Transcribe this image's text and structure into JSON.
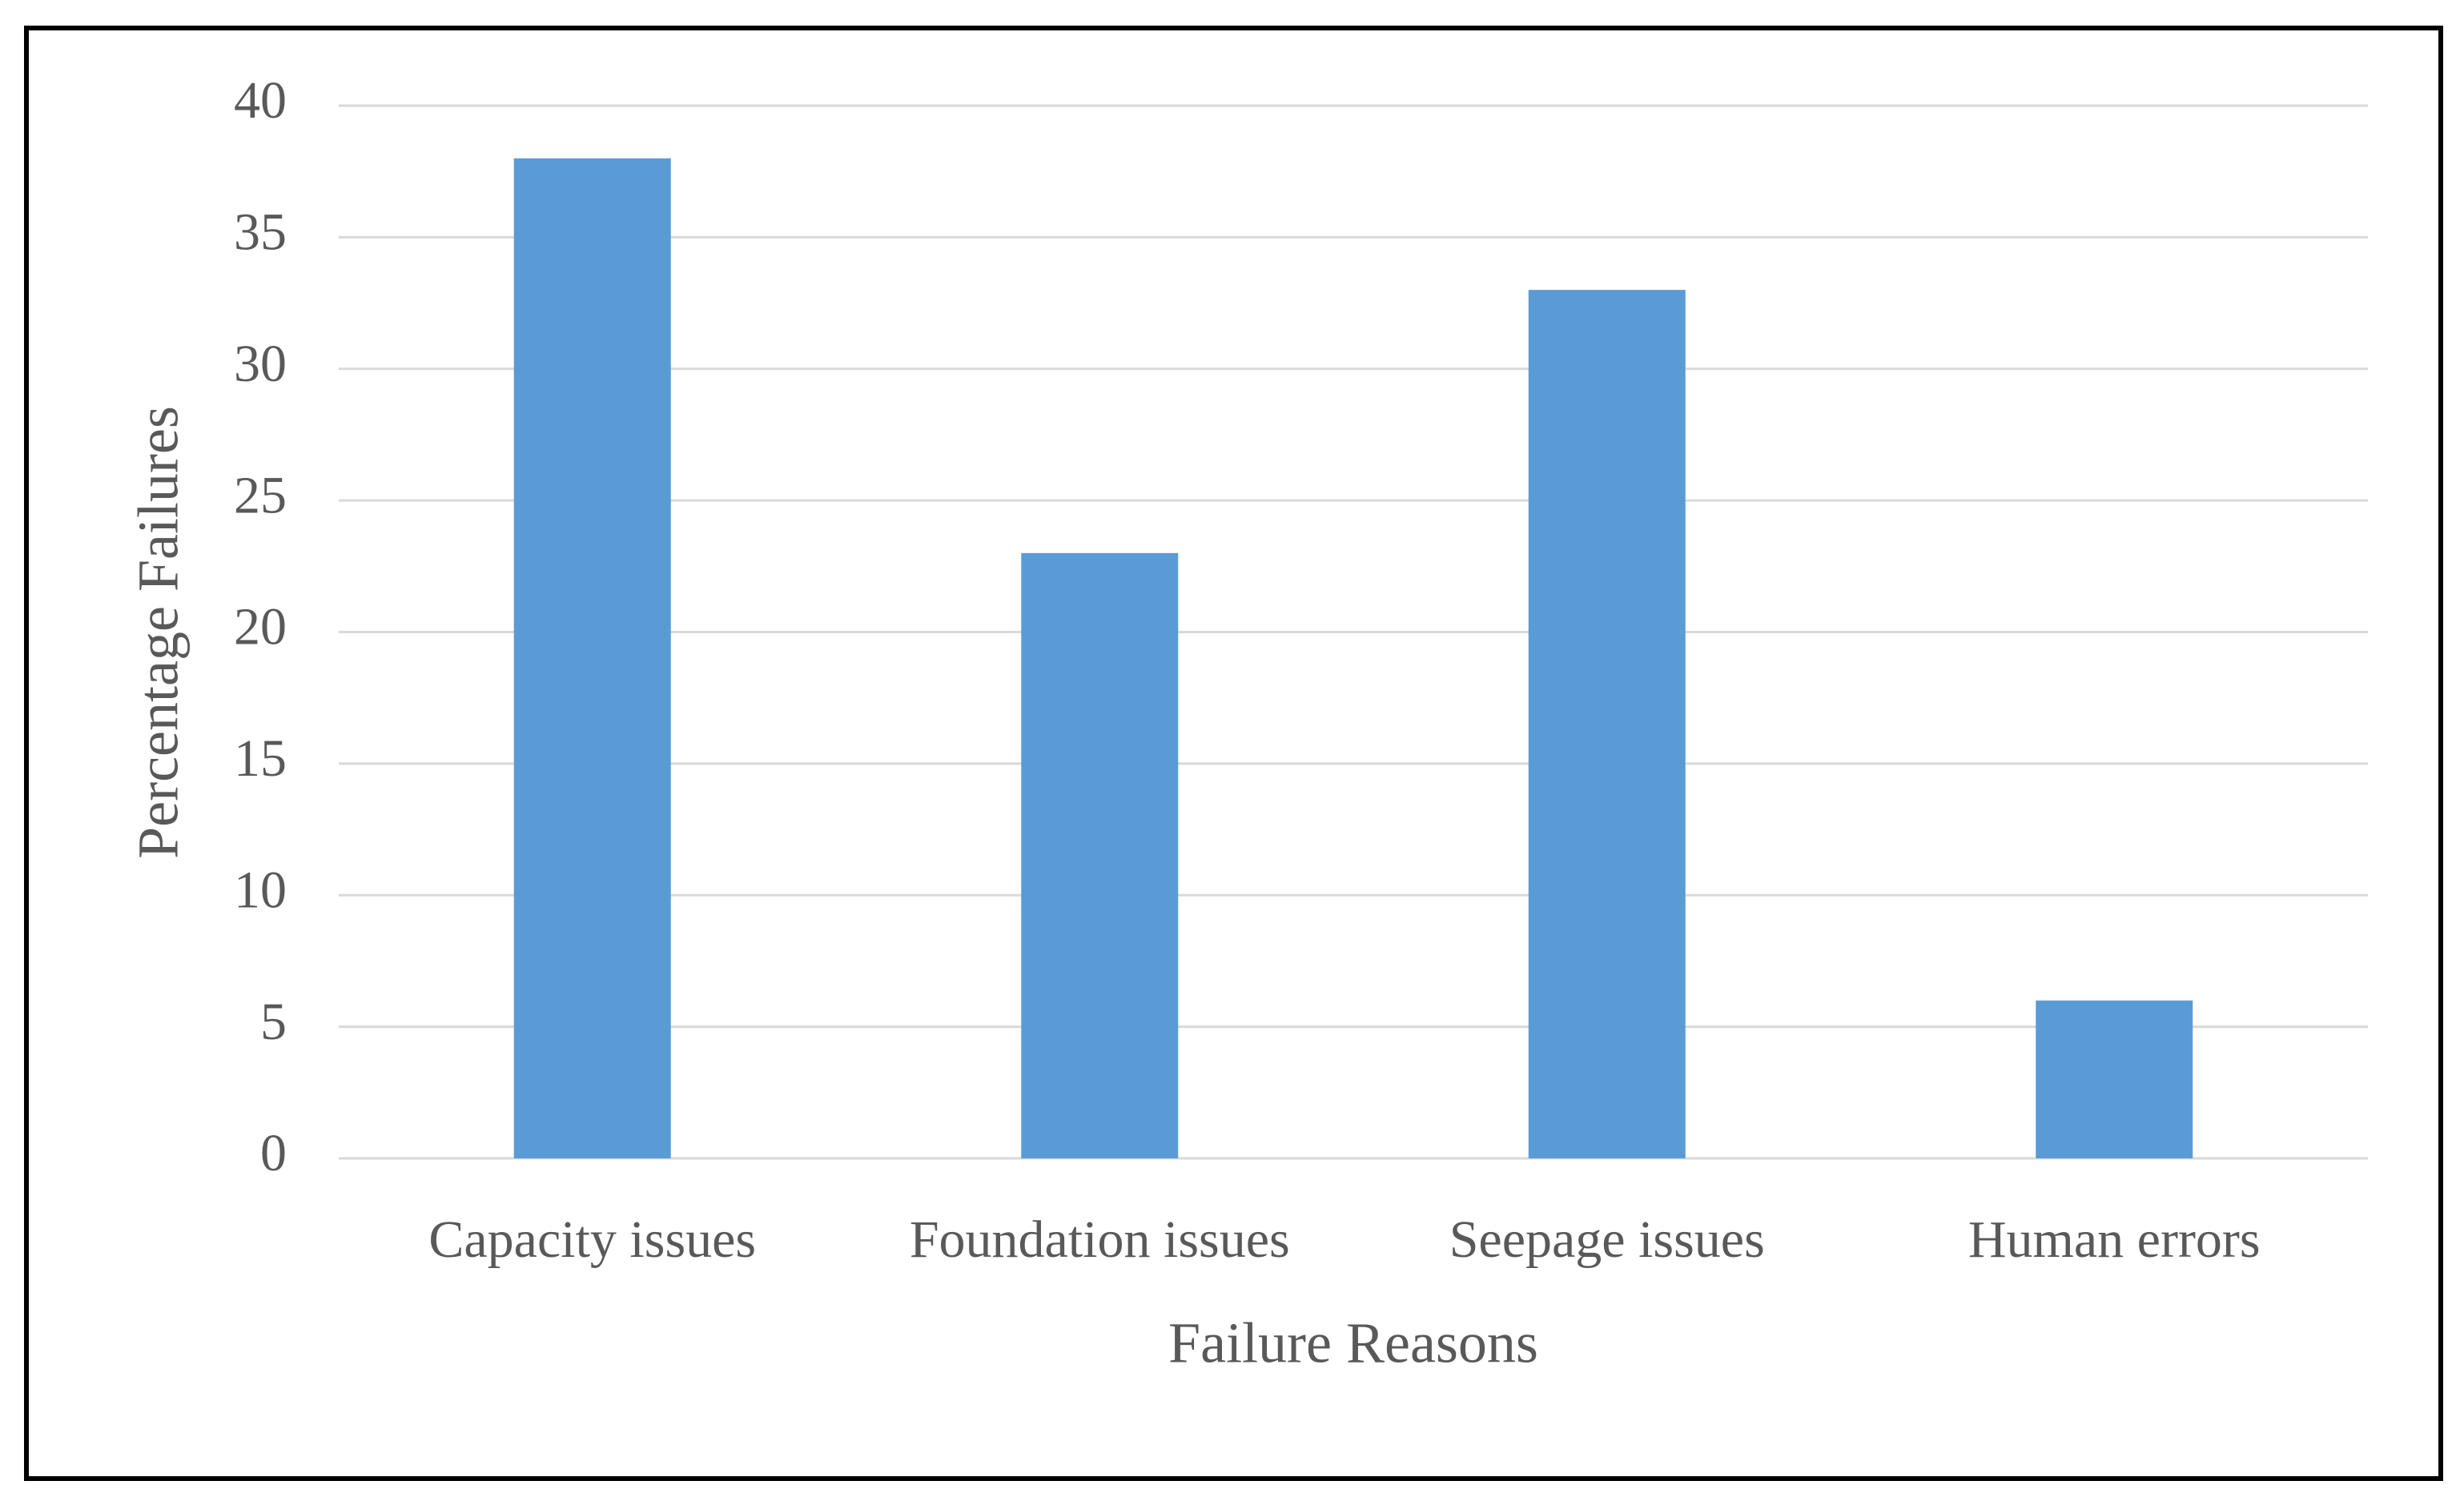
{
  "chart_data": {
    "type": "bar",
    "x_label": "Failure Reasons",
    "y_label": "Percentage Failures",
    "categories": [
      "Capacity issues",
      "Foundation issues",
      "Seepage issues",
      "Human errors"
    ],
    "values": [
      38,
      23,
      33,
      6
    ],
    "color": "#5b9bd5",
    "ylim": [
      0,
      40
    ],
    "yticks": [
      0,
      5,
      10,
      15,
      20,
      25,
      30,
      35,
      40
    ],
    "grid": true
  }
}
